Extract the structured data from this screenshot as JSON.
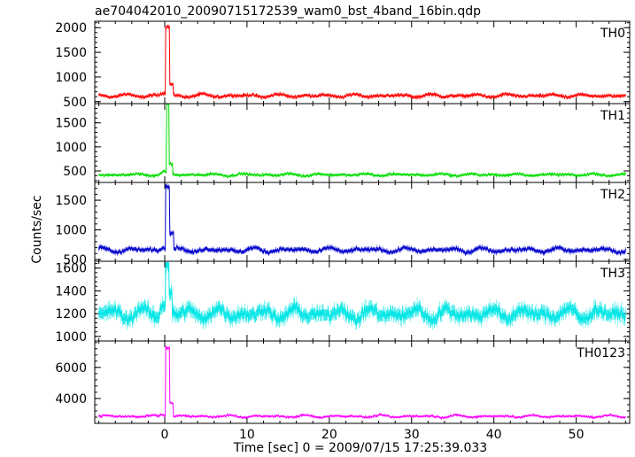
{
  "chart_data": {
    "type": "line",
    "title": "ae704042010_20090715172539_wam0_bst_4band_16bin.qdp",
    "xlabel": "Time [sec] 0 = 2009/07/15 17:25:39.033",
    "ylabel": "Counts/sec",
    "xlim": [
      -8.5,
      56.5
    ],
    "x_ticks": [
      0,
      10,
      20,
      30,
      40,
      50
    ],
    "x_tick_labels": [
      "0",
      "10",
      "20",
      "30",
      "40",
      "50"
    ],
    "grid": false,
    "series": [
      {
        "name": "TH0",
        "color": "#ff0000",
        "ylim": [
          460,
          2130
        ],
        "y_ticks": [
          500,
          1000,
          1500,
          2000
        ],
        "y_tick_labels": [
          "500",
          "1000",
          "1500",
          "2000"
        ],
        "baseline": 620,
        "noise": 40,
        "wave": 35,
        "peak": 2020,
        "peak_start": 0.1,
        "peak_end": 0.6,
        "tail_level": 850,
        "tail_end": 1.0
      },
      {
        "name": "TH1",
        "color": "#00dd00",
        "ylim": [
          260,
          1900
        ],
        "y_ticks": [
          500,
          1000,
          1500
        ],
        "y_tick_labels": [
          "500",
          "1000",
          "1500"
        ],
        "baseline": 420,
        "noise": 35,
        "wave": 25,
        "peak": 1900,
        "peak_start": 0.2,
        "peak_end": 0.55,
        "tail_level": 650,
        "tail_end": 0.95
      },
      {
        "name": "TH2",
        "color": "#0000cc",
        "ylim": [
          470,
          1800
        ],
        "y_ticks": [
          500,
          1000,
          1500
        ],
        "y_tick_labels": [
          "500",
          "1000",
          "1500"
        ],
        "baseline": 660,
        "noise": 45,
        "wave": 40,
        "peak": 1750,
        "peak_start": 0.1,
        "peak_end": 0.6,
        "tail_level": 950,
        "tail_end": 1.1
      },
      {
        "name": "TH3",
        "color": "#00e5e5",
        "ylim": [
          960,
          1660
        ],
        "y_ticks": [
          1000,
          1200,
          1400,
          1600
        ],
        "y_tick_labels": [
          "1000",
          "1200",
          "1400",
          "1600"
        ],
        "baseline": 1200,
        "noise": 70,
        "wave": 55,
        "peak": 1640,
        "peak_start": 0.1,
        "peak_end": 0.5,
        "tail_level": 1380,
        "tail_end": 0.9
      },
      {
        "name": "TH0123",
        "color": "#ff00ff",
        "ylim": [
          2400,
          7700
        ],
        "y_ticks": [
          4000,
          6000
        ],
        "y_tick_labels": [
          "4000",
          "6000"
        ],
        "baseline": 2850,
        "noise": 90,
        "wave": 80,
        "peak": 7250,
        "peak_start": 0.1,
        "peak_end": 0.6,
        "tail_level": 3700,
        "tail_end": 1.0
      }
    ]
  }
}
